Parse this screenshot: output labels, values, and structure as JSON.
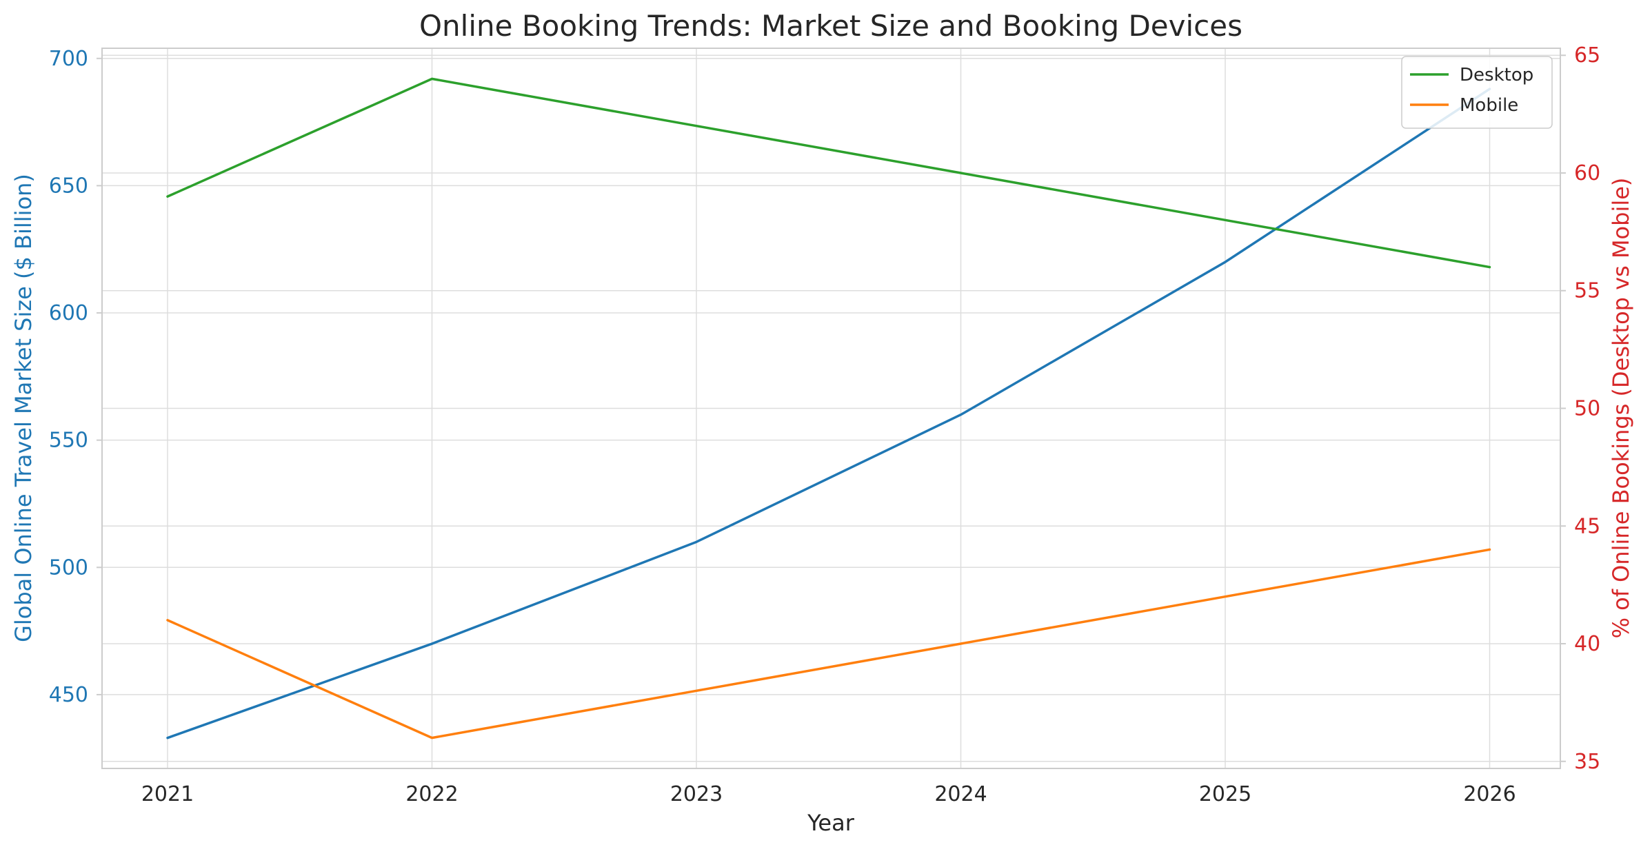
{
  "chart_data": {
    "type": "line",
    "title": "Online Booking Trends: Market Size and Booking Devices",
    "xlabel": "Year",
    "ylabel_left": "Global Online Travel Market Size ($ Billion)",
    "ylabel_right": "% of Online Bookings (Desktop vs Mobile)",
    "x": [
      2021,
      2022,
      2023,
      2024,
      2025,
      2026
    ],
    "x_tick_labels": [
      "2021",
      "2022",
      "2023",
      "2024",
      "2025",
      "2026"
    ],
    "ylim_left": [
      421,
      704
    ],
    "ylim_right": [
      34.7,
      65.3
    ],
    "yticks_left": [
      "450",
      "500",
      "550",
      "600",
      "650",
      "700"
    ],
    "yticks_right": [
      "35",
      "40",
      "45",
      "50",
      "55",
      "60",
      "65"
    ],
    "grid": true,
    "legend_position": "top-right",
    "series": [
      {
        "name": "",
        "axis": "left",
        "color": "#1f77b4",
        "values": [
          433,
          470,
          510,
          560,
          620,
          688
        ]
      },
      {
        "name": "Desktop",
        "axis": "right",
        "color": "#2ca02c",
        "values": [
          59,
          64,
          62,
          60,
          58,
          56
        ]
      },
      {
        "name": "Mobile",
        "axis": "right",
        "color": "#ff7f0e",
        "values": [
          41,
          36,
          38,
          40,
          42,
          44
        ]
      }
    ],
    "colors": {
      "left_axis": "#1f77b4",
      "right_axis": "#d62728",
      "text": "#262626",
      "grid": "#dddddd",
      "frame": "#cccccc"
    }
  }
}
